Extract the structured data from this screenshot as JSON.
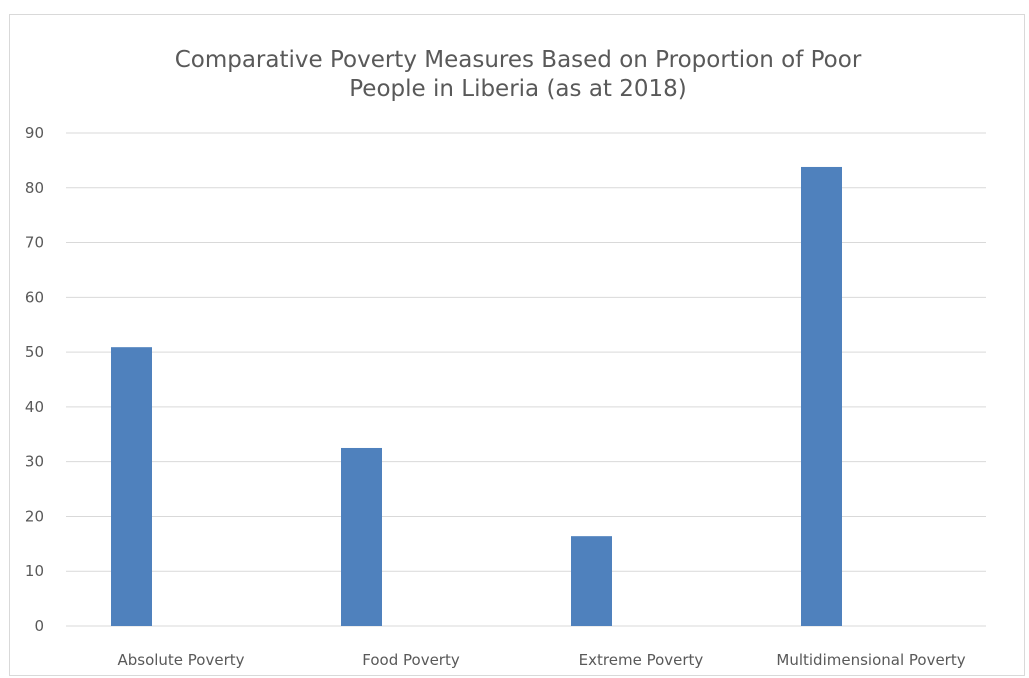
{
  "chart_data": {
    "type": "bar",
    "title_lines": [
      "Comparative Poverty Measures Based on Proportion of Poor",
      "People in Liberia (as at 2018)"
    ],
    "categories": [
      "Absolute Poverty",
      "Food Poverty",
      "Extreme Poverty",
      "Multidimensional Poverty"
    ],
    "values": [
      50.9,
      32.5,
      16.4,
      83.8
    ],
    "xlabel": "",
    "ylabel": "",
    "ylim": [
      0,
      90
    ],
    "yticks": [
      "0",
      "10",
      "20",
      "30",
      "40",
      "50",
      "60",
      "70",
      "80",
      "90"
    ],
    "grid": true,
    "legend": "none",
    "bar_color": "#4f81bd"
  }
}
